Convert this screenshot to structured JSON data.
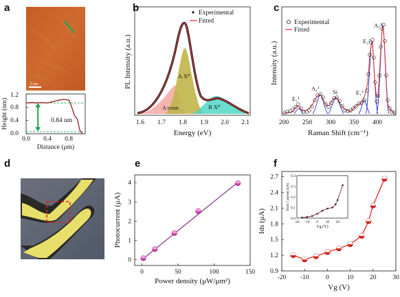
{
  "panels": {
    "a": {
      "letter": "a",
      "scale_bar": "2 μm",
      "profile_label": "0.84 nm",
      "xlabel": "Distance (μm)",
      "ylabel": "Height (nm)",
      "xticks": [
        "0.0",
        "0.4",
        "0.8"
      ],
      "yticks": [
        "0.0",
        "0.4",
        "0.8",
        "1.2"
      ],
      "colors": {
        "afm": "#c8642c",
        "profile": "#8b1c1c",
        "arrow": "#1aa64b"
      }
    },
    "b": {
      "letter": "b",
      "xlabel": "Energy (eV)",
      "ylabel": "PL Intensity (a.u.)",
      "xticks": [
        "1.6",
        "1.7",
        "1.8",
        "1.9",
        "2.0",
        "2.1"
      ],
      "legend": [
        "Experimental",
        "Fitted"
      ],
      "peaks": [
        "A X⁰",
        "A trion",
        "B X⁰"
      ]
    },
    "c": {
      "letter": "c",
      "xlabel": "Raman Shift (cm⁻¹)",
      "ylabel": "Intensity (a.u.)",
      "xticks": [
        "200",
        "250",
        "300",
        "350",
        "400"
      ],
      "legend": [
        "Experimental",
        "Fitted"
      ],
      "peaks": [
        "E₁¹",
        "A₁¹",
        "Si",
        "E₁³",
        "E₂²",
        "A₂²"
      ]
    },
    "d": {
      "letter": "d"
    },
    "e": {
      "letter": "e"
    },
    "f": {
      "letter": "f"
    }
  },
  "chart_data": [
    {
      "type": "line",
      "panel": "a",
      "xlabel": "Distance (μm)",
      "ylabel": "Height (nm)",
      "xlim": [
        0.0,
        1.1
      ],
      "ylim": [
        0.0,
        1.2
      ],
      "x": [
        0.0,
        0.1,
        0.2,
        0.3,
        0.4,
        0.5,
        0.6,
        0.7,
        0.8,
        0.85,
        0.9,
        0.95,
        1.0,
        1.05
      ],
      "y": [
        0.93,
        0.94,
        0.93,
        0.94,
        0.93,
        0.97,
        1.01,
        1.04,
        1.01,
        0.8,
        0.55,
        0.45,
        0.1,
        0.0
      ]
    },
    {
      "type": "scatter",
      "panel": "e",
      "xlabel": "Power density (μW/μm²)",
      "ylabel": "Photocurrent (μA)",
      "xticks": [
        0,
        50,
        100,
        150
      ],
      "yticks": [
        0,
        1,
        2,
        3,
        4
      ],
      "xlim": [
        -10,
        150
      ],
      "ylim": [
        -0.3,
        4.4
      ],
      "x": [
        2,
        18,
        45,
        78,
        133
      ],
      "y": [
        0.08,
        0.55,
        1.38,
        2.52,
        3.97
      ],
      "fit": {
        "x": [
          0,
          133
        ],
        "y": [
          0.0,
          4.02
        ]
      }
    },
    {
      "type": "line",
      "panel": "f",
      "xlabel": "V_g (V)",
      "ylabel": "I_ds (μA)",
      "xticks": [
        -20,
        -10,
        0,
        10,
        20,
        30
      ],
      "yticks": [
        0.9,
        1.2,
        1.5,
        1.8,
        2.1,
        2.4,
        2.7
      ],
      "xlim": [
        -20,
        30
      ],
      "ylim": [
        0.9,
        2.8
      ],
      "x": [
        -15,
        -10,
        -5,
        0,
        5,
        10,
        15,
        18,
        20,
        25
      ],
      "y": [
        1.2,
        1.12,
        1.18,
        1.26,
        1.33,
        1.41,
        1.57,
        1.85,
        2.15,
        2.66
      ]
    },
    {
      "type": "line",
      "panel": "f-inset",
      "xlabel": "V_g (V)",
      "ylabel": "Dark Current (nA)",
      "xticks": [
        -20,
        -10,
        0,
        10,
        20
      ],
      "yticks": [
        0.0,
        0.1,
        0.2,
        0.3,
        0.4
      ],
      "xlim": [
        -20,
        30
      ],
      "ylim": [
        0.0,
        0.4
      ],
      "x": [
        -15,
        -10,
        -5,
        0,
        5,
        10,
        15,
        18,
        20,
        25
      ],
      "y": [
        0.005,
        0.01,
        0.02,
        0.04,
        0.07,
        0.09,
        0.1,
        0.13,
        0.17,
        0.31
      ]
    }
  ]
}
